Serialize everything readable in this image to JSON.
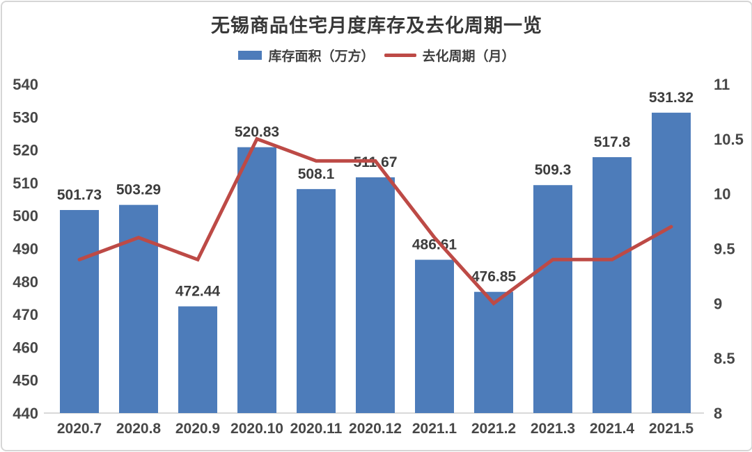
{
  "title": "无锡商品住宅月度库存及去化周期一览",
  "legend": [
    {
      "label": "库存面积（万方）",
      "type": "bar",
      "color": "#4d7cba"
    },
    {
      "label": "去化周期（月）",
      "type": "line",
      "color": "#bd4a46"
    }
  ],
  "colors": {
    "bar": "#4d7cba",
    "line": "#bd4a46",
    "title_text": "#383838",
    "tick_text": "#474747",
    "data_label_text": "#3d3d3d",
    "axis_line": "#d9d9d9",
    "card_border": "#d6d6d6"
  },
  "chart_data": {
    "type": "bar",
    "subtype": "bar-line-combo",
    "title": "无锡商品住宅月度库存及去化周期一览",
    "categories": [
      "2020.7",
      "2020.8",
      "2020.9",
      "2020.10",
      "2020.11",
      "2020.12",
      "2021.1",
      "2021.2",
      "2021.3",
      "2021.4",
      "2021.5"
    ],
    "series": [
      {
        "name": "库存面积（万方）",
        "type": "bar",
        "axis": "left",
        "color": "#4d7cba",
        "values": [
          501.73,
          503.29,
          472.44,
          520.83,
          508.1,
          511.67,
          486.61,
          476.85,
          509.3,
          517.8,
          531.32
        ],
        "data_labels": [
          "501.73",
          "503.29",
          "472.44",
          "520.83",
          "508.1",
          "511.67",
          "486.61",
          "476.85",
          "509.3",
          "517.8",
          "531.32"
        ]
      },
      {
        "name": "去化周期（月）",
        "type": "line",
        "axis": "right",
        "color": "#bd4a46",
        "values": [
          9.4,
          9.6,
          9.4,
          10.5,
          10.3,
          10.3,
          9.6,
          9.0,
          9.4,
          9.4,
          9.7
        ]
      }
    ],
    "left_axis": {
      "min": 440,
      "max": 540,
      "step": 10,
      "ticks": [
        "540",
        "530",
        "520",
        "510",
        "500",
        "490",
        "480",
        "470",
        "460",
        "450",
        "440"
      ]
    },
    "right_axis": {
      "min": 8,
      "max": 11,
      "step": 0.5,
      "ticks": [
        "11",
        "10.5",
        "10",
        "9.5",
        "9",
        "8.5",
        "8"
      ]
    },
    "grid": false,
    "legend_position": "top",
    "xlabel": "",
    "ylabel_left": "库存面积（万方）",
    "ylabel_right": "去化周期（月）"
  }
}
